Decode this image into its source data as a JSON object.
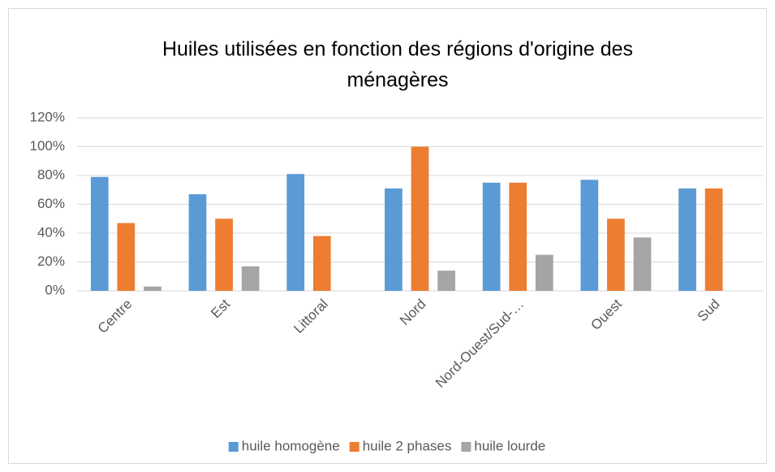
{
  "chart_data": {
    "type": "bar",
    "title": [
      "Huiles utilisées en fonction des régions d'origine des",
      "ménagères"
    ],
    "categories": [
      "Centre",
      "Est",
      "Littoral",
      "Nord",
      "Nord-Ouest/Sud-…",
      "Ouest",
      "Sud"
    ],
    "series": [
      {
        "name": "huile homogène",
        "color": "#5b9bd5",
        "values": [
          79,
          67,
          81,
          71,
          75,
          77,
          71
        ]
      },
      {
        "name": "huile 2 phases",
        "color": "#ed7d31",
        "values": [
          47,
          50,
          38,
          100,
          75,
          50,
          71
        ]
      },
      {
        "name": "huile lourde",
        "color": "#a5a5a5",
        "values": [
          3,
          17,
          null,
          14,
          25,
          37,
          null
        ]
      }
    ],
    "ylim": [
      0,
      120
    ],
    "yticks": [
      {
        "value": 0,
        "label": "0%"
      },
      {
        "value": 20,
        "label": "20%"
      },
      {
        "value": 40,
        "label": "40%"
      },
      {
        "value": 60,
        "label": "60%"
      },
      {
        "value": 80,
        "label": "80%"
      },
      {
        "value": 100,
        "label": "100%"
      },
      {
        "value": 120,
        "label": "120%"
      }
    ],
    "grid": true,
    "legend": "bottom"
  }
}
